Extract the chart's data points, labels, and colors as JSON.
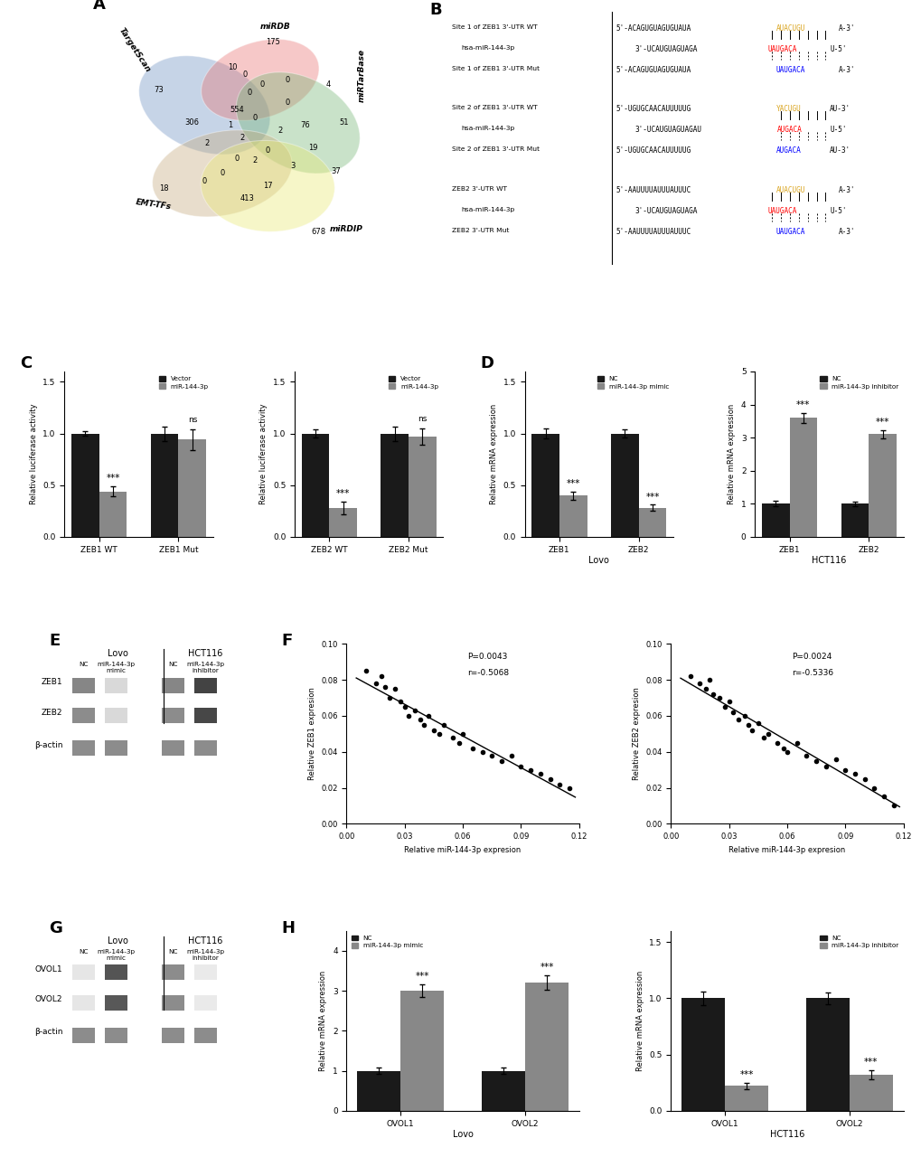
{
  "venn_colors": {
    "TargetScan": "#6B8EC2",
    "miRDB": "#E87070",
    "miRTarBase": "#72B572",
    "EMT_TFs": "#C4A87A",
    "miRDIP": "#E8E870"
  },
  "panel_C_left": {
    "categories": [
      "ZEB1 WT",
      "ZEB1 Mut"
    ],
    "vector": [
      1.0,
      1.0
    ],
    "mirna": [
      0.44,
      0.94
    ],
    "vector_err": [
      0.02,
      0.07
    ],
    "mirna_err": [
      0.05,
      0.1
    ],
    "significance": [
      "***",
      "ns"
    ],
    "ylabel": "Relative luciferase activity",
    "ylim": [
      0,
      1.6
    ],
    "yticks": [
      0.0,
      0.5,
      1.0,
      1.5
    ]
  },
  "panel_C_right": {
    "categories": [
      "ZEB2 WT",
      "ZEB2 Mut"
    ],
    "vector": [
      1.0,
      1.0
    ],
    "mirna": [
      0.28,
      0.97
    ],
    "vector_err": [
      0.04,
      0.07
    ],
    "mirna_err": [
      0.06,
      0.08
    ],
    "significance": [
      "***",
      "ns"
    ],
    "ylabel": "Relative luciferase activity",
    "ylim": [
      0,
      1.6
    ],
    "yticks": [
      0.0,
      0.5,
      1.0,
      1.5
    ]
  },
  "panel_D_left": {
    "categories": [
      "ZEB1",
      "ZEB2"
    ],
    "nc": [
      1.0,
      1.0
    ],
    "treat": [
      0.4,
      0.28
    ],
    "nc_err": [
      0.05,
      0.04
    ],
    "treat_err": [
      0.04,
      0.03
    ],
    "significance": [
      "***",
      "***"
    ],
    "ylabel": "Relative mRNA expression",
    "xlabel": "Lovo",
    "ylim": [
      0,
      1.6
    ],
    "yticks": [
      0.0,
      0.5,
      1.0,
      1.5
    ],
    "legend_nc": "NC",
    "legend_treat": "miR-144-3p mimic"
  },
  "panel_D_right": {
    "categories": [
      "ZEB1",
      "ZEB2"
    ],
    "nc": [
      1.0,
      1.0
    ],
    "treat": [
      3.6,
      3.1
    ],
    "nc_err": [
      0.08,
      0.06
    ],
    "treat_err": [
      0.15,
      0.12
    ],
    "significance": [
      "***",
      "***"
    ],
    "ylabel": "Relative mRNA expression",
    "xlabel": "HCT116",
    "ylim": [
      0,
      5
    ],
    "yticks": [
      0,
      1,
      2,
      3,
      4,
      5
    ],
    "legend_nc": "NC",
    "legend_treat": "miR-144-3p inhibitor"
  },
  "panel_F_left": {
    "xlabel": "Relative miR-144-3p expresion",
    "ylabel": "Relative ZEB1 expresion",
    "pvalue": "P=0.0043",
    "r_value": "r=-0.5068",
    "xlim": [
      0,
      0.12
    ],
    "ylim": [
      0,
      0.1
    ],
    "xticks": [
      0,
      0.03,
      0.06,
      0.09,
      0.12
    ],
    "yticks": [
      0,
      0.02,
      0.04,
      0.06,
      0.08,
      0.1
    ]
  },
  "panel_F_right": {
    "xlabel": "Relative miR-144-3p expresion",
    "ylabel": "Relative ZEB2 expresion",
    "pvalue": "P=0.0024",
    "r_value": "r=-0.5336",
    "xlim": [
      0,
      0.12
    ],
    "ylim": [
      0,
      0.1
    ],
    "xticks": [
      0,
      0.03,
      0.06,
      0.09,
      0.12
    ],
    "yticks": [
      0,
      0.02,
      0.04,
      0.06,
      0.08,
      0.1
    ]
  },
  "panel_H_left": {
    "categories": [
      "OVOL1",
      "OVOL2"
    ],
    "nc": [
      1.0,
      1.0
    ],
    "treat": [
      3.0,
      3.2
    ],
    "nc_err": [
      0.08,
      0.07
    ],
    "treat_err": [
      0.15,
      0.18
    ],
    "significance": [
      "***",
      "***"
    ],
    "ylabel": "Relative mRNA expression",
    "xlabel": "Lovo",
    "ylim": [
      0,
      4.5
    ],
    "yticks": [
      0,
      1,
      2,
      3,
      4
    ],
    "legend_nc": "NC",
    "legend_treat": "miR-144-3p mimic"
  },
  "panel_H_right": {
    "categories": [
      "OVOL1",
      "OVOL2"
    ],
    "nc": [
      1.0,
      1.0
    ],
    "treat": [
      0.22,
      0.32
    ],
    "nc_err": [
      0.06,
      0.05
    ],
    "treat_err": [
      0.03,
      0.04
    ],
    "significance": [
      "***",
      "***"
    ],
    "ylabel": "Relative mRNA expression",
    "xlabel": "HCT116",
    "ylim": [
      0,
      1.6
    ],
    "yticks": [
      0.0,
      0.5,
      1.0,
      1.5
    ],
    "legend_nc": "NC",
    "legend_treat": "miR-144-3p inhibitor"
  },
  "scatter_F_left_x": [
    0.01,
    0.015,
    0.018,
    0.02,
    0.022,
    0.025,
    0.028,
    0.03,
    0.032,
    0.035,
    0.038,
    0.04,
    0.042,
    0.045,
    0.048,
    0.05,
    0.055,
    0.058,
    0.06,
    0.065,
    0.07,
    0.075,
    0.08,
    0.085,
    0.09,
    0.095,
    0.1,
    0.105,
    0.11,
    0.115
  ],
  "scatter_F_left_y": [
    0.085,
    0.078,
    0.082,
    0.076,
    0.07,
    0.075,
    0.068,
    0.065,
    0.06,
    0.063,
    0.058,
    0.055,
    0.06,
    0.052,
    0.05,
    0.055,
    0.048,
    0.045,
    0.05,
    0.042,
    0.04,
    0.038,
    0.035,
    0.038,
    0.032,
    0.03,
    0.028,
    0.025,
    0.022,
    0.02
  ],
  "scatter_F_right_x": [
    0.01,
    0.015,
    0.018,
    0.02,
    0.022,
    0.025,
    0.028,
    0.03,
    0.032,
    0.035,
    0.038,
    0.04,
    0.042,
    0.045,
    0.048,
    0.05,
    0.055,
    0.058,
    0.06,
    0.065,
    0.07,
    0.075,
    0.08,
    0.085,
    0.09,
    0.095,
    0.1,
    0.105,
    0.11,
    0.115
  ],
  "scatter_F_right_y": [
    0.082,
    0.078,
    0.075,
    0.08,
    0.072,
    0.07,
    0.065,
    0.068,
    0.062,
    0.058,
    0.06,
    0.055,
    0.052,
    0.056,
    0.048,
    0.05,
    0.045,
    0.042,
    0.04,
    0.045,
    0.038,
    0.035,
    0.032,
    0.036,
    0.03,
    0.028,
    0.025,
    0.02,
    0.015,
    0.01
  ],
  "bar_color_black": "#1a1a1a",
  "bar_color_gray": "#888888",
  "background_color": "#ffffff"
}
